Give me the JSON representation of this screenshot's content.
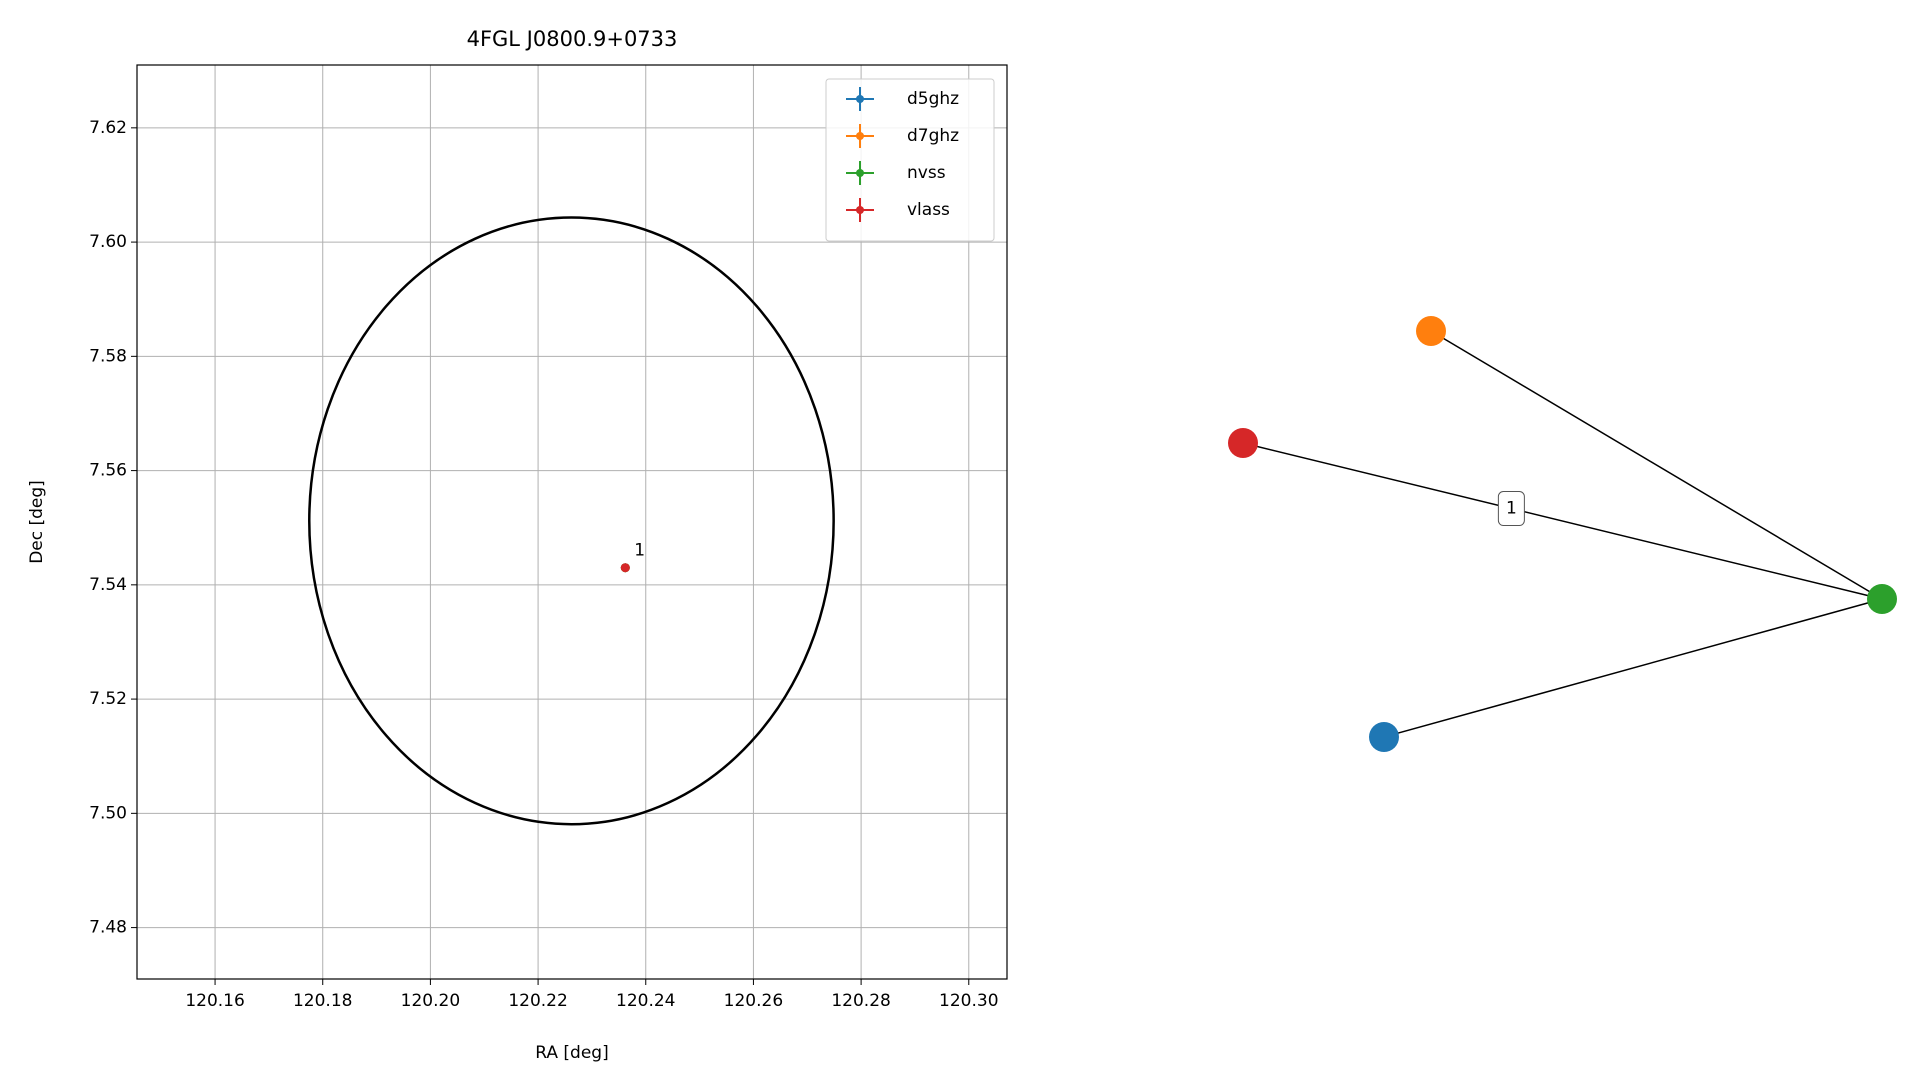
{
  "chart_data": [
    {
      "type": "scatter",
      "title": "4FGL J0800.9+0733",
      "xlabel": "RA [deg]",
      "ylabel": "Dec [deg]",
      "xlim": [
        120.1455,
        120.3071
      ],
      "ylim": [
        7.471,
        7.631
      ],
      "xticks": [
        {
          "value": 120.16,
          "label": "120.16"
        },
        {
          "value": 120.18,
          "label": "120.18"
        },
        {
          "value": 120.2,
          "label": "120.20"
        },
        {
          "value": 120.22,
          "label": "120.22"
        },
        {
          "value": 120.24,
          "label": "120.24"
        },
        {
          "value": 120.26,
          "label": "120.26"
        },
        {
          "value": 120.28,
          "label": "120.28"
        },
        {
          "value": 120.3,
          "label": "120.30"
        }
      ],
      "yticks": [
        {
          "value": 7.48,
          "label": "7.48"
        },
        {
          "value": 7.5,
          "label": "7.50"
        },
        {
          "value": 7.52,
          "label": "7.52"
        },
        {
          "value": 7.54,
          "label": "7.54"
        },
        {
          "value": 7.56,
          "label": "7.56"
        },
        {
          "value": 7.58,
          "label": "7.58"
        },
        {
          "value": 7.6,
          "label": "7.60"
        },
        {
          "value": 7.62,
          "label": "7.62"
        }
      ],
      "grid": true,
      "legend": "upper right",
      "series": [
        {
          "name": "d5ghz",
          "color": "#1f77b4",
          "x": [
            120.2362
          ],
          "values": [
            7.543
          ]
        },
        {
          "name": "d7ghz",
          "color": "#ff7f0e",
          "x": [
            120.2362
          ],
          "values": [
            7.543
          ]
        },
        {
          "name": "nvss",
          "color": "#2ca02c",
          "x": [
            120.2362
          ],
          "values": [
            7.543
          ]
        },
        {
          "name": "vlass",
          "color": "#d62728",
          "x": [
            120.2362
          ],
          "values": [
            7.543
          ]
        }
      ],
      "annotation": "1",
      "ellipse": {
        "x": 120.2262,
        "y": 7.5512,
        "width": 0.0974,
        "height": 0.1062,
        "color": "#000000"
      }
    },
    {
      "type": "network",
      "nodes": [
        {
          "color": "#1f77b4"
        },
        {
          "color": "#ff7f0e"
        },
        {
          "color": "#2ca02c"
        },
        {
          "color": "#d62728"
        }
      ],
      "edges": [
        {
          "source": 1,
          "target": 2
        },
        {
          "source": 3,
          "target": 2,
          "label": "1"
        },
        {
          "source": 0,
          "target": 2
        }
      ]
    }
  ]
}
